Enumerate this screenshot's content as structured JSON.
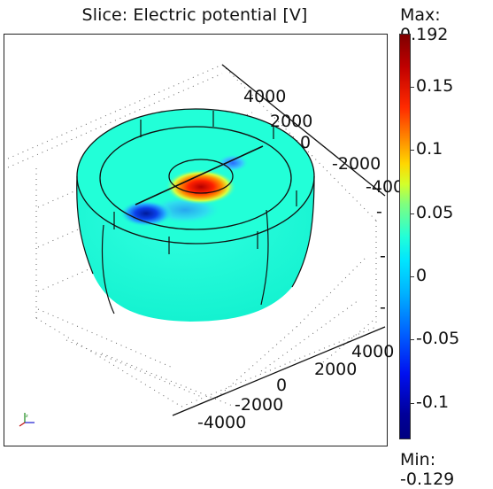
{
  "title": "Slice: Electric potential [V]",
  "colorbar": {
    "max_label": "Max: 0.192",
    "min_label": "Min: -0.129",
    "max": 0.192,
    "min": -0.129,
    "ticks": [
      {
        "label": "0.15",
        "value": 0.15
      },
      {
        "label": "0.1",
        "value": 0.1
      },
      {
        "label": "0.05",
        "value": 0.05
      },
      {
        "label": "0",
        "value": 0
      },
      {
        "label": "-0.05",
        "value": -0.05
      },
      {
        "label": "-0.1",
        "value": -0.1
      }
    ]
  },
  "axes": {
    "back_axis_ticks": [
      "4000",
      "2000",
      "0",
      "-2000",
      "-400"
    ],
    "front_axis_ticks": [
      "4000",
      "2000",
      "0",
      "-2000",
      "-4000"
    ]
  },
  "colors": {
    "positive_peak": "#d40000",
    "negative_peak": "#0a2fd8",
    "background_field": "#22ffd8"
  },
  "icons": [
    "axis-triad-icon"
  ]
}
